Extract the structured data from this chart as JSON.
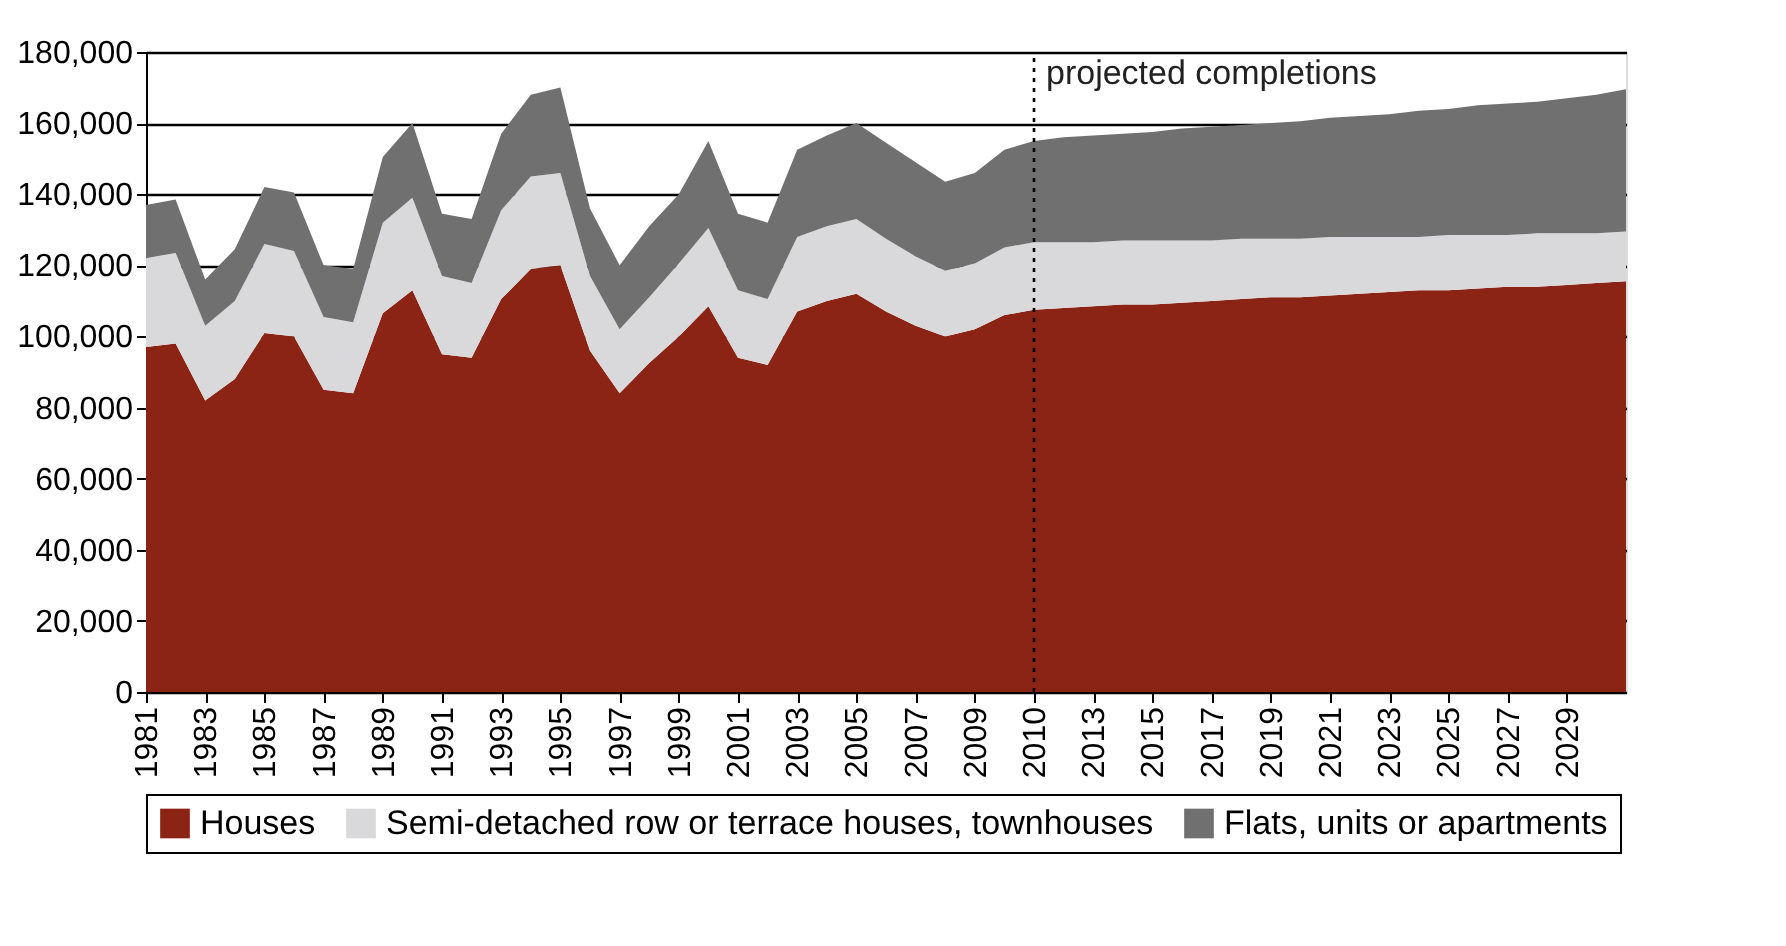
{
  "chart_data": {
    "type": "area",
    "stacked": true,
    "categories": [
      "1981",
      null,
      "1983",
      null,
      "1985",
      null,
      "1987",
      null,
      "1989",
      null,
      "1991",
      null,
      "1993",
      null,
      "1995",
      null,
      "1997",
      null,
      "1999",
      null,
      "2001",
      null,
      "2003",
      null,
      "2005",
      null,
      "2007",
      null,
      "2009",
      null,
      "2010",
      null,
      "2013",
      null,
      "2015",
      null,
      "2017",
      null,
      "2019",
      null,
      "2021",
      null,
      "2023",
      null,
      "2025",
      null,
      "2027",
      null,
      "2029",
      null,
      null
    ],
    "series": [
      {
        "name": "Houses",
        "color": "#8b2414",
        "values": [
          97000,
          98000,
          82000,
          88000,
          101000,
          100000,
          85000,
          84000,
          106500,
          113000,
          95000,
          94000,
          110500,
          119000,
          120000,
          96000,
          84000,
          92500,
          100000,
          108500,
          94000,
          92000,
          107000,
          110000,
          112000,
          107000,
          103000,
          100000,
          102000,
          106000,
          107500,
          108000,
          108500,
          109000,
          109000,
          109500,
          110000,
          110500,
          111000,
          111000,
          111500,
          112000,
          112500,
          113000,
          113000,
          113500,
          114000,
          114000,
          114500,
          115000,
          115500
        ]
      },
      {
        "name": "Semi-detached row or terrace houses, townhouses",
        "color": "#d9d9db",
        "values": [
          25000,
          25500,
          21000,
          22000,
          25000,
          24000,
          20500,
          20000,
          25500,
          26000,
          22000,
          21000,
          25000,
          26000,
          26000,
          21000,
          18000,
          18500,
          20500,
          22000,
          19000,
          18500,
          21000,
          21000,
          21000,
          20500,
          19500,
          18500,
          18500,
          19000,
          19000,
          18500,
          18000,
          18000,
          18000,
          17500,
          17000,
          17000,
          16500,
          16500,
          16500,
          16000,
          15500,
          15000,
          15500,
          15000,
          14500,
          15000,
          14500,
          14000,
          14000
        ]
      },
      {
        "name": "Flats, units or apartments",
        "color": "#707071",
        "values": [
          15000,
          15000,
          13000,
          14500,
          16000,
          16500,
          14500,
          15000,
          18500,
          21000,
          17500,
          18000,
          21500,
          23000,
          24000,
          19000,
          18000,
          20000,
          19500,
          24500,
          21500,
          21500,
          24500,
          25500,
          27000,
          27000,
          26500,
          25000,
          25500,
          27500,
          28500,
          29500,
          30000,
          30000,
          30500,
          31500,
          32000,
          32000,
          32500,
          33000,
          33500,
          34000,
          34500,
          35500,
          35500,
          36500,
          37000,
          37000,
          38000,
          39000,
          40000
        ]
      }
    ],
    "ylim": [
      0,
      180000
    ],
    "yticks": [
      0,
      {
        "value": 20000,
        "label": "20,000"
      },
      {
        "value": 40000,
        "label": "40,000"
      },
      {
        "value": 60000,
        "label": "60,000"
      },
      {
        "value": 80000,
        "label": "80,000"
      },
      {
        "value": 100000,
        "label": "100,000"
      },
      {
        "value": 120000,
        "label": "120,000"
      },
      {
        "value": 140000,
        "label": "140,000"
      },
      {
        "value": 160000,
        "label": "160,000"
      },
      {
        "value": 180000,
        "label": "180,000"
      }
    ],
    "grid": "y",
    "legend": "bottom",
    "ref_lines": [
      {
        "axis": "x",
        "value": "2010",
        "label": "projected  completions",
        "line_style": "dotted",
        "color": "#000000"
      }
    ]
  }
}
